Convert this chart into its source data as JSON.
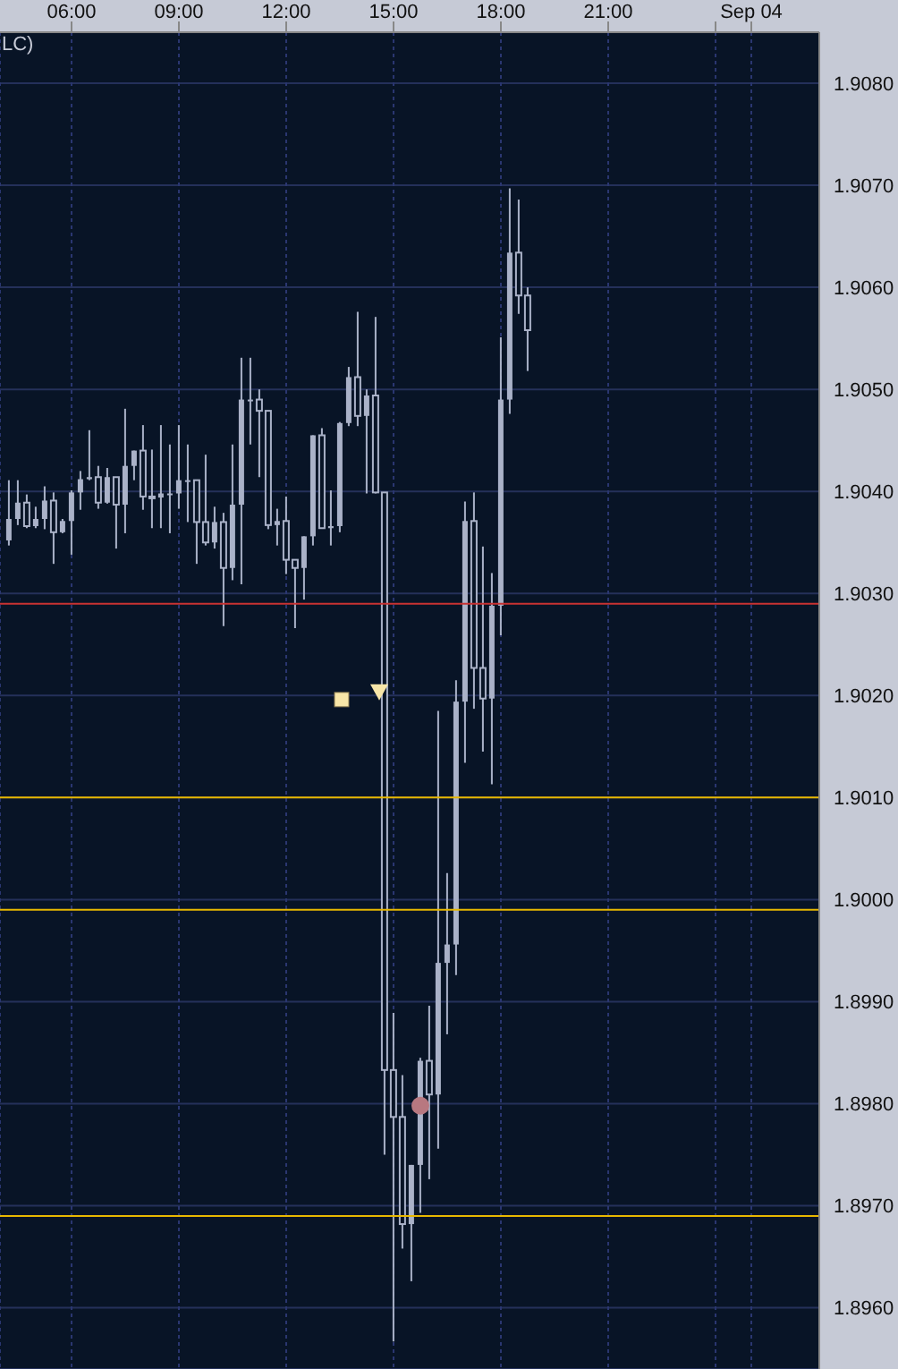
{
  "chart_data": {
    "type": "candlestick",
    "annotations": [
      "LC)"
    ],
    "x": [
      4.25,
      4.5,
      4.75,
      5,
      5.25,
      5.5,
      5.75,
      6,
      6.25,
      6.5,
      6.75,
      7,
      7.25,
      7.5,
      7.75,
      8,
      8.25,
      8.5,
      8.75,
      9,
      9.25,
      9.5,
      9.75,
      10,
      10.25,
      10.5,
      10.75,
      11,
      11.25,
      11.5,
      11.75,
      12,
      12.25,
      12.5,
      12.75,
      13,
      13.25,
      13.5,
      13.75,
      14,
      14.25,
      14.5,
      14.75,
      15,
      15.25,
      15.5,
      15.75,
      16,
      16.25,
      16.5,
      16.75,
      17,
      17.25,
      17.5,
      17.75,
      18,
      18.25,
      18.5,
      18.75
    ],
    "ohlc": [
      [
        1.90352,
        1.90411,
        1.90347,
        1.90373
      ],
      [
        1.90373,
        1.90411,
        1.90367,
        1.90389
      ],
      [
        1.90389,
        1.90397,
        1.90364,
        1.90366
      ],
      [
        1.90366,
        1.90385,
        1.90364,
        1.90373
      ],
      [
        1.90373,
        1.90405,
        1.90363,
        1.90391
      ],
      [
        1.90391,
        1.90399,
        1.90329,
        1.9036
      ],
      [
        1.9036,
        1.90373,
        1.90359,
        1.90371
      ],
      [
        1.90371,
        1.90401,
        1.90338,
        1.90399
      ],
      [
        1.90399,
        1.9042,
        1.90382,
        1.90412
      ],
      [
        1.90412,
        1.9046,
        1.90411,
        1.90414
      ],
      [
        1.90414,
        1.90425,
        1.90383,
        1.90389
      ],
      [
        1.90389,
        1.90423,
        1.90388,
        1.90414
      ],
      [
        1.90414,
        1.90414,
        1.90344,
        1.90387
      ],
      [
        1.90387,
        1.90481,
        1.90359,
        1.90425
      ],
      [
        1.90425,
        1.9044,
        1.90411,
        1.9044
      ],
      [
        1.9044,
        1.90465,
        1.90382,
        1.90395
      ],
      [
        1.90395,
        1.90441,
        1.90364,
        1.90394
      ],
      [
        1.90394,
        1.90465,
        1.90364,
        1.90398
      ],
      [
        1.90398,
        1.90446,
        1.90359,
        1.90398
      ],
      [
        1.90398,
        1.90465,
        1.90383,
        1.90411
      ],
      [
        1.90411,
        1.90446,
        1.9037,
        1.90411
      ],
      [
        1.90411,
        1.90411,
        1.90329,
        1.9037
      ],
      [
        1.9037,
        1.90436,
        1.90347,
        1.9035
      ],
      [
        1.9035,
        1.90385,
        1.90344,
        1.9037
      ],
      [
        1.9037,
        1.90379,
        1.90268,
        1.90325
      ],
      [
        1.90325,
        1.90446,
        1.90313,
        1.90387
      ],
      [
        1.90387,
        1.90531,
        1.90309,
        1.9049
      ],
      [
        1.9049,
        1.90531,
        1.90446,
        1.9049
      ],
      [
        1.9049,
        1.905,
        1.90414,
        1.90479
      ],
      [
        1.90479,
        1.90479,
        1.90363,
        1.90367
      ],
      [
        1.90367,
        1.90383,
        1.90347,
        1.90371
      ],
      [
        1.90371,
        1.90395,
        1.90319,
        1.90333
      ],
      [
        1.90333,
        1.90333,
        1.90266,
        1.90325
      ],
      [
        1.90325,
        1.90356,
        1.90294,
        1.90356
      ],
      [
        1.90356,
        1.90455,
        1.90347,
        1.90455
      ],
      [
        1.90455,
        1.90462,
        1.90364,
        1.90364
      ],
      [
        1.90364,
        1.90401,
        1.90347,
        1.90366
      ],
      [
        1.90366,
        1.90468,
        1.9036,
        1.90467
      ],
      [
        1.90467,
        1.90522,
        1.90464,
        1.90512
      ],
      [
        1.90512,
        1.90576,
        1.90464,
        1.90474
      ],
      [
        1.90474,
        1.905,
        1.90398,
        1.90494
      ],
      [
        1.90494,
        1.90571,
        1.90398,
        1.90399
      ],
      [
        1.90399,
        1.90399,
        1.8975,
        1.89833
      ],
      [
        1.89833,
        1.89889,
        1.89567,
        1.89787
      ],
      [
        1.89787,
        1.89828,
        1.89658,
        1.89682
      ],
      [
        1.89682,
        1.8974,
        1.89626,
        1.8974
      ],
      [
        1.8974,
        1.89845,
        1.89693,
        1.89842
      ],
      [
        1.89842,
        1.89896,
        1.89726,
        1.89809
      ],
      [
        1.89809,
        1.90185,
        1.89756,
        1.89938
      ],
      [
        1.89938,
        1.90026,
        1.89868,
        1.89956
      ],
      [
        1.89956,
        1.90215,
        1.89926,
        1.90194
      ],
      [
        1.90194,
        1.9039,
        1.90134,
        1.90371
      ],
      [
        1.90371,
        1.90399,
        1.90187,
        1.90227
      ],
      [
        1.90227,
        1.90346,
        1.90145,
        1.90197
      ],
      [
        1.90197,
        1.9032,
        1.90113,
        1.90288
      ],
      [
        1.90288,
        1.90551,
        1.90259,
        1.9049
      ],
      [
        1.9049,
        1.90697,
        1.90476,
        1.90634
      ],
      [
        1.90634,
        1.90686,
        1.90574,
        1.90592
      ],
      [
        1.90592,
        1.906,
        1.90518,
        1.90558
      ]
    ],
    "color": "#aab2c8",
    "series": [
      {
        "type": "scatter",
        "x": [
          13.55
        ],
        "values": [
          1.90196
        ],
        "marker": "square",
        "color": "#f8e6a8"
      },
      {
        "type": "scatter",
        "x": [
          14.6
        ],
        "values": [
          1.90204
        ],
        "marker": "triangle",
        "color": "#f8e6a8"
      },
      {
        "type": "scatter",
        "x": [
          15.75
        ],
        "values": [
          1.89798
        ],
        "marker": "circle",
        "color": "#b87880"
      }
    ],
    "ref_lines": [
      {
        "axis": "y",
        "value": 1.9029,
        "color": "#c83232"
      },
      {
        "axis": "y",
        "value": 1.901,
        "color": "#e8b800"
      },
      {
        "axis": "y",
        "value": 1.8999,
        "color": "#e8b800"
      },
      {
        "axis": "y",
        "value": 1.8969,
        "color": "#e8b800"
      }
    ],
    "xlim": [
      4,
      26.9
    ],
    "xticks": [
      {
        "value": 6,
        "label": "06:00"
      },
      {
        "value": 9,
        "label": "09:00"
      },
      {
        "value": 12,
        "label": "12:00"
      },
      {
        "value": 15,
        "label": "15:00"
      },
      {
        "value": 18,
        "label": "18:00"
      },
      {
        "value": 21,
        "label": "21:00"
      },
      {
        "value": 24,
        "label": null
      },
      {
        "value": 25,
        "label": "Sep 04"
      }
    ],
    "ylim": [
      1.8954,
      1.9085
    ],
    "yticks": [
      {
        "value": 1.896,
        "label": "1.8960"
      },
      {
        "value": 1.897,
        "label": "1.8970"
      },
      {
        "value": 1.898,
        "label": "1.8980"
      },
      {
        "value": 1.899,
        "label": "1.8990"
      },
      {
        "value": 1.9,
        "label": "1.9000"
      },
      {
        "value": 1.901,
        "label": "1.9010"
      },
      {
        "value": 1.902,
        "label": "1.9020"
      },
      {
        "value": 1.903,
        "label": "1.9030"
      },
      {
        "value": 1.904,
        "label": "1.9040"
      },
      {
        "value": 1.905,
        "label": "1.9050"
      },
      {
        "value": 1.906,
        "label": "1.9060"
      },
      {
        "value": 1.907,
        "label": "1.9070"
      },
      {
        "value": 1.908,
        "label": "1.9080"
      }
    ],
    "grid": true
  }
}
